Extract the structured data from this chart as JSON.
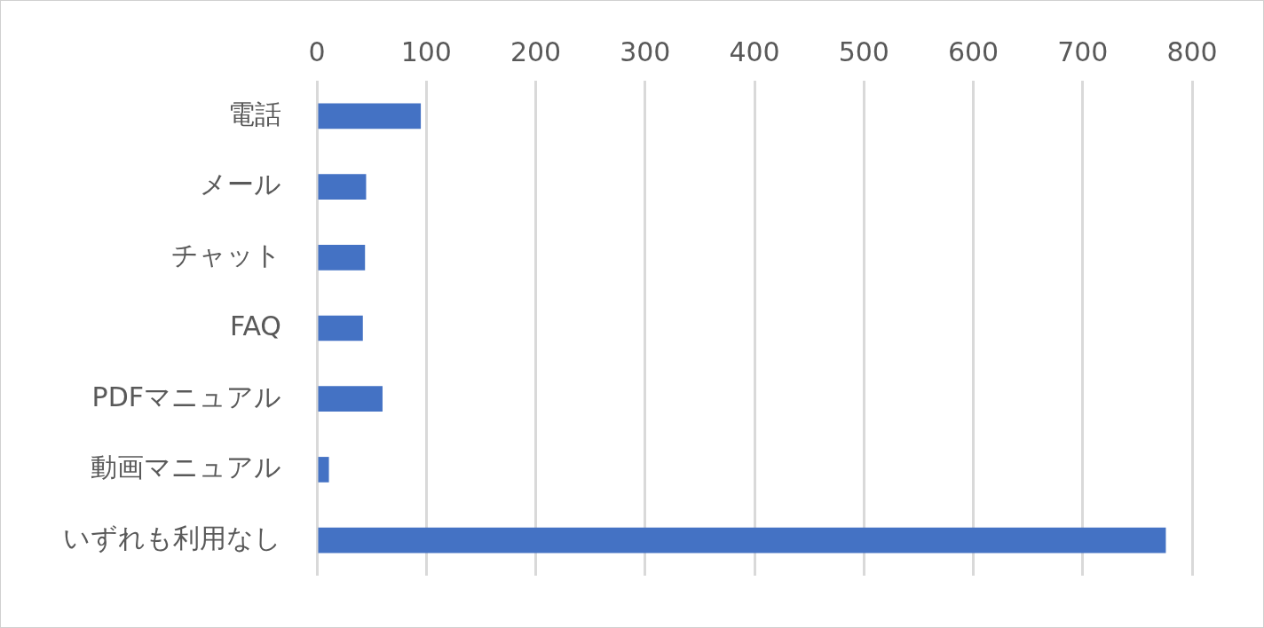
{
  "chart_data": {
    "type": "bar",
    "orientation": "horizontal",
    "categories": [
      "電話",
      "メール",
      "チャット",
      "FAQ",
      "PDFマニュアル",
      "動画マニュアル",
      "いずれも利用なし"
    ],
    "values": [
      95,
      45,
      44,
      42,
      60,
      11,
      776
    ],
    "color": "#4472c4",
    "xlim": [
      0,
      800
    ],
    "xticks": [
      0,
      100,
      200,
      300,
      400,
      500,
      600,
      700,
      800
    ],
    "grid": "x",
    "legend": false
  }
}
